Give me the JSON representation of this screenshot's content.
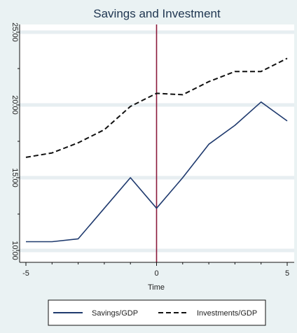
{
  "chart_data": {
    "type": "line",
    "title": "Savings and Investment",
    "xlabel": "Time",
    "ylabel": "",
    "xlim": [
      -5,
      5
    ],
    "ylim": [
      10,
      25
    ],
    "x_ticks": [
      "-5",
      "0",
      "5"
    ],
    "y_ticks": [
      "10.00",
      "15.00",
      "20.00",
      "25.00"
    ],
    "grid": true,
    "reference_line": {
      "x": 0,
      "color": "#8b1a3a"
    },
    "legend_position": "bottom",
    "x": [
      -5,
      -4,
      -3,
      -2,
      -1,
      0,
      1,
      2,
      3,
      4,
      5
    ],
    "series": [
      {
        "name": "Savings/GDP",
        "color": "#1f3a6e",
        "style": "solid",
        "values": [
          10.6,
          10.6,
          10.8,
          12.9,
          15.0,
          12.9,
          15.0,
          17.3,
          18.6,
          20.2,
          18.9
        ]
      },
      {
        "name": "Investments/GDP",
        "color": "#111111",
        "style": "dashed",
        "values": [
          16.4,
          16.7,
          17.4,
          18.3,
          19.9,
          20.8,
          20.7,
          21.6,
          22.3,
          22.3,
          23.2
        ]
      }
    ]
  }
}
